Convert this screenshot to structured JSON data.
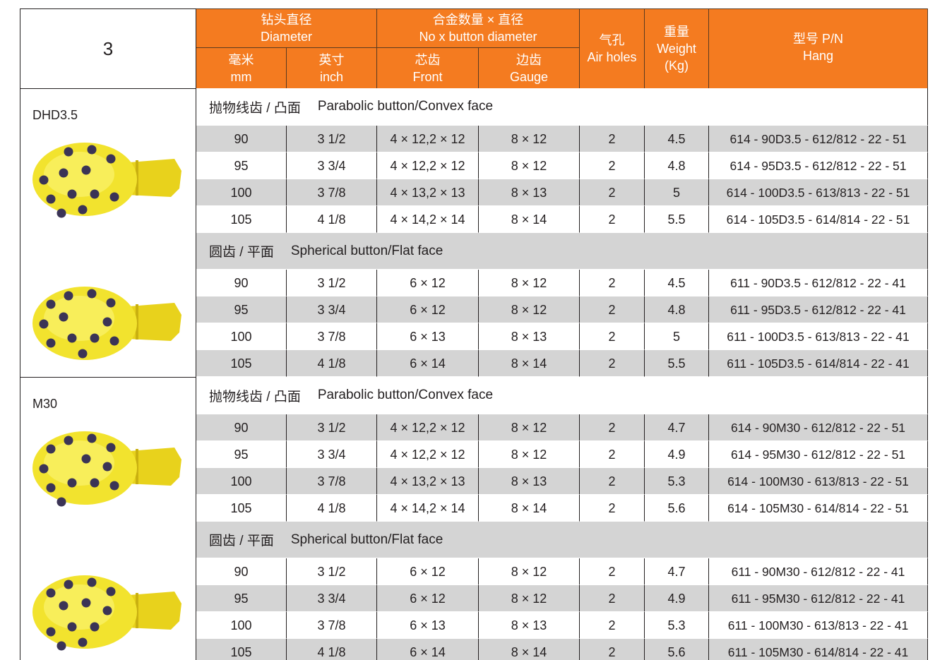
{
  "header": {
    "corner": "3",
    "groups": [
      {
        "zh": "钻头直径",
        "en": "Diameter"
      },
      {
        "zh": "合金数量 × 直径",
        "en": "No x button  diameter"
      }
    ],
    "columns": [
      {
        "zh": "毫米",
        "en": "mm"
      },
      {
        "zh": "英寸",
        "en": "inch"
      },
      {
        "zh": "芯齿",
        "en": "Front"
      },
      {
        "zh": "边齿",
        "en": "Gauge"
      },
      {
        "zh": "气孔",
        "en": "Air holes"
      },
      {
        "zh": "重量",
        "en": "Weight",
        "unit": "(Kg)"
      },
      {
        "zh": "型号 P/N",
        "en": "Hang"
      }
    ]
  },
  "sections": [
    {
      "model": "DHD3.5",
      "groups": [
        {
          "label_zh": "抛物线齿 / 凸面",
          "label_en": "Parabolic button/Convex face",
          "rows": [
            [
              "90",
              "3 1/2",
              "4 × 12,2 × 12",
              "8 × 12",
              "2",
              "4.5",
              "614 - 90D3.5 - 612/812 - 22 - 51"
            ],
            [
              "95",
              "3 3/4",
              "4 × 12,2 × 12",
              "8 × 12",
              "2",
              "4.8",
              "614 - 95D3.5 - 612/812 - 22 - 51"
            ],
            [
              "100",
              "3 7/8",
              "4 × 13,2 × 13",
              "8 × 13",
              "2",
              "5",
              "614 - 100D3.5 - 613/813 - 22 - 51"
            ],
            [
              "105",
              "4 1/8",
              "4 × 14,2 × 14",
              "8 × 14",
              "2",
              "5.5",
              "614 - 105D3.5 - 614/814 - 22 - 51"
            ]
          ]
        },
        {
          "label_zh": "圆齿 / 平面",
          "label_en": "Spherical button/Flat face",
          "rows": [
            [
              "90",
              "3 1/2",
              "6 × 12",
              "8 × 12",
              "2",
              "4.5",
              "611 - 90D3.5 - 612/812 - 22 - 41"
            ],
            [
              "95",
              "3 3/4",
              "6 × 12",
              "8 × 12",
              "2",
              "4.8",
              "611 - 95D3.5 - 612/812 - 22 - 41"
            ],
            [
              "100",
              "3 7/8",
              "6 × 13",
              "8 × 13",
              "2",
              "5",
              "611 - 100D3.5 - 613/813 - 22 - 41"
            ],
            [
              "105",
              "4 1/8",
              "6 × 14",
              "8 × 14",
              "2",
              "5.5",
              "611 - 105D3.5 - 614/814 - 22 - 41"
            ]
          ]
        }
      ]
    },
    {
      "model": "M30",
      "groups": [
        {
          "label_zh": "抛物线齿 / 凸面",
          "label_en": "Parabolic button/Convex face",
          "rows": [
            [
              "90",
              "3 1/2",
              "4 × 12,2 × 12",
              "8 × 12",
              "2",
              "4.7",
              "614 - 90M30 - 612/812 - 22 - 51"
            ],
            [
              "95",
              "3 3/4",
              "4 × 12,2 × 12",
              "8 × 12",
              "2",
              "4.9",
              "614 - 95M30 - 612/812 - 22 - 51"
            ],
            [
              "100",
              "3 7/8",
              "4 × 13,2 × 13",
              "8 × 13",
              "2",
              "5.3",
              "614 - 100M30 - 613/813 - 22 - 51"
            ],
            [
              "105",
              "4 1/8",
              "4 × 14,2 × 14",
              "8 × 14",
              "2",
              "5.6",
              "614 - 105M30 - 614/814 - 22 - 51"
            ]
          ]
        },
        {
          "label_zh": "圆齿 / 平面",
          "label_en": "Spherical button/Flat face",
          "rows": [
            [
              "90",
              "3 1/2",
              "6 × 12",
              "8 × 12",
              "2",
              "4.7",
              "611 - 90M30 - 612/812 - 22 - 41"
            ],
            [
              "95",
              "3 3/4",
              "6 × 12",
              "8 × 12",
              "2",
              "4.9",
              "611 - 95M30 - 612/812 - 22 - 41"
            ],
            [
              "100",
              "3 7/8",
              "6 × 13",
              "8 × 13",
              "2",
              "5.3",
              "611 - 100M30 - 613/813 - 22 - 41"
            ],
            [
              "105",
              "4 1/8",
              "6 × 14",
              "8 × 14",
              "2",
              "5.6",
              "611 - 105M30 - 614/814 - 22 - 41"
            ]
          ]
        }
      ]
    }
  ]
}
